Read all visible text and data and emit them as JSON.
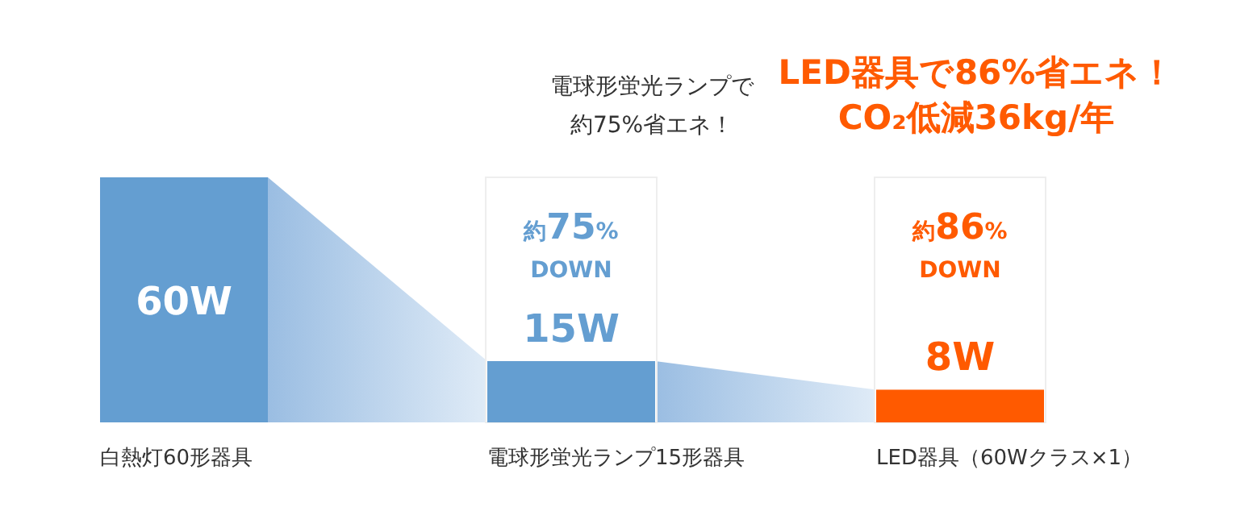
{
  "chart_data": {
    "type": "bar",
    "title": "LED器具で86%省エネ！\nCO₂低減36kg/年",
    "categories": [
      "白熱灯60形器具",
      "電球形蛍光ランプ15形器具",
      "LED器具（60Wクラス×1）"
    ],
    "values": [
      60,
      15,
      8
    ],
    "colors": [
      "#649ed1",
      "#649ed1",
      "#ff5a00"
    ],
    "value_labels": [
      "60W",
      "15W",
      "8W"
    ],
    "annotations": [
      "電球形蛍光ランプで",
      "約75%省エネ！",
      "約75%\nDOWN",
      "約86%\nDOWN"
    ]
  }
}
